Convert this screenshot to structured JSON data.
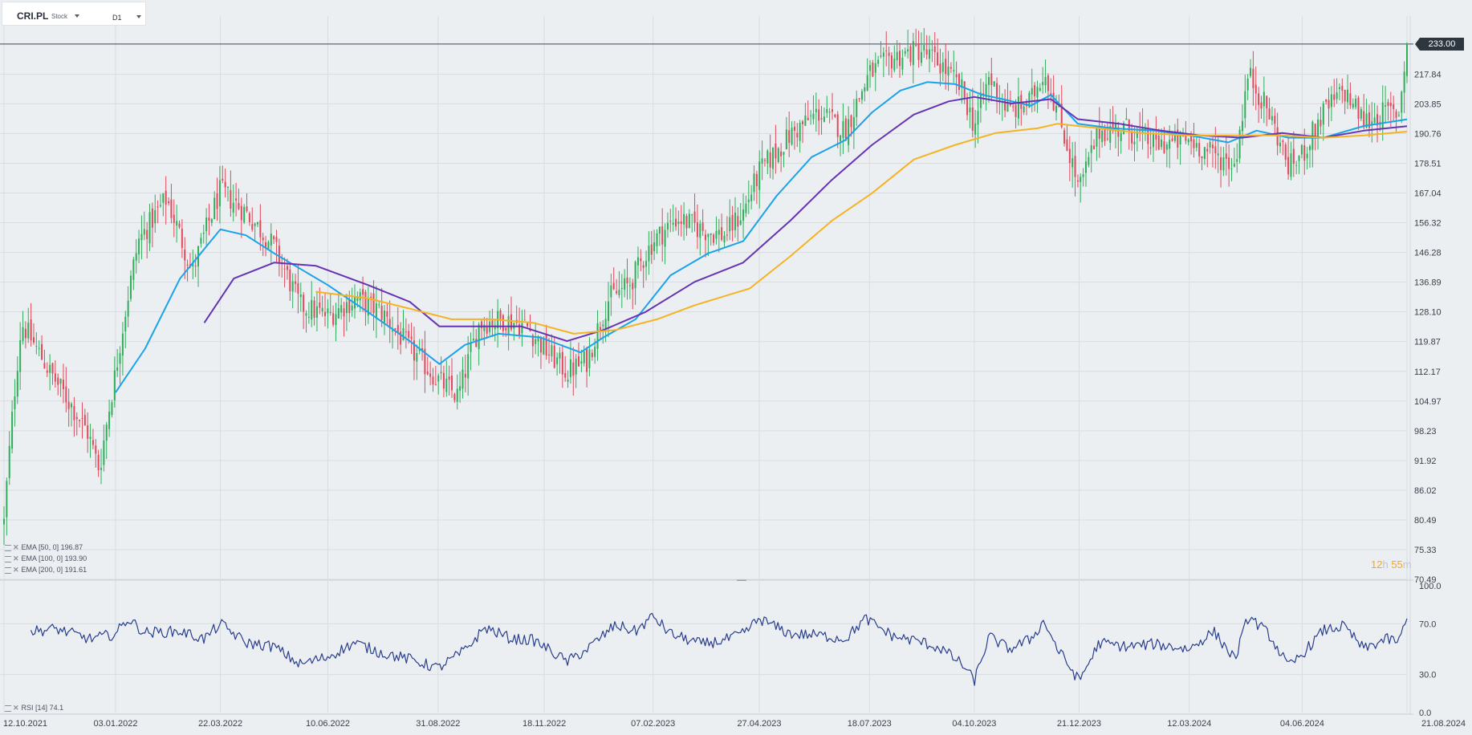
{
  "toolbar": {
    "symbol": "CRI.PL",
    "asset_type": "Stock",
    "timeframe": "D1"
  },
  "current_price": "233.00",
  "countdown": {
    "hours": "12",
    "h_unit": "h",
    "minutes": "55",
    "m_unit": "m"
  },
  "indicators": [
    {
      "label": "EMA  [50,  0]  196.87",
      "color": "#1aa3e8"
    },
    {
      "label": "EMA  [100,  0]  193.90",
      "color": "#6633b3"
    },
    {
      "label": "EMA  [200,  0]  191.61",
      "color": "#f5b324"
    }
  ],
  "rsi_legend": "RSI  [14]  74.1",
  "colors": {
    "up": "#2fae5a",
    "down": "#e0495b",
    "ema50": "#1aa3e8",
    "ema100": "#6633b3",
    "ema200": "#f5b324",
    "rsi": "#283e8c"
  },
  "chart_data": [
    {
      "type": "candlestick",
      "title": "",
      "x_tick_labels": [
        "12.10.2021",
        "03.01.2022",
        "22.03.2022",
        "10.06.2022",
        "31.08.2022",
        "18.11.2022",
        "07.02.2023",
        "27.04.2023",
        "18.07.2023",
        "04.10.2023",
        "21.12.2023",
        "12.03.2024",
        "04.06.2024",
        "21.08.2024"
      ],
      "y_tick_labels": [
        "217.84",
        "203.85",
        "190.76",
        "178.51",
        "167.04",
        "156.32",
        "146.28",
        "136.89",
        "128.10",
        "119.87",
        "112.17",
        "104.97",
        "98.23",
        "91.92",
        "86.02",
        "80.49",
        "75.33",
        "70.49"
      ],
      "y_scale": "log",
      "ylim": [
        70.49,
        248
      ],
      "current_price": 233.0,
      "close_path": [
        [
          "2021-10-12",
          80
        ],
        [
          "2021-10-25",
          125
        ],
        [
          "2021-11-15",
          112
        ],
        [
          "2021-12-13",
          98
        ],
        [
          "2021-12-22",
          90
        ],
        [
          "2022-01-03",
          112
        ],
        [
          "2022-01-20",
          150
        ],
        [
          "2022-02-10",
          165
        ],
        [
          "2022-03-01",
          140
        ],
        [
          "2022-03-22",
          168
        ],
        [
          "2022-04-10",
          160
        ],
        [
          "2022-05-01",
          148
        ],
        [
          "2022-05-20",
          130
        ],
        [
          "2022-06-10",
          127
        ],
        [
          "2022-07-01",
          132
        ],
        [
          "2022-07-20",
          128
        ],
        [
          "2022-08-10",
          118
        ],
        [
          "2022-08-31",
          110
        ],
        [
          "2022-09-15",
          106
        ],
        [
          "2022-10-01",
          125
        ],
        [
          "2022-10-20",
          126
        ],
        [
          "2022-11-05",
          124
        ],
        [
          "2022-11-18",
          118
        ],
        [
          "2022-12-05",
          112
        ],
        [
          "2022-12-20",
          115
        ],
        [
          "2023-01-05",
          132
        ],
        [
          "2023-01-20",
          136
        ],
        [
          "2023-02-07",
          150
        ],
        [
          "2023-02-25",
          158
        ],
        [
          "2023-03-15",
          154
        ],
        [
          "2023-04-01",
          152
        ],
        [
          "2023-04-15",
          160
        ],
        [
          "2023-04-27",
          175
        ],
        [
          "2023-05-20",
          190
        ],
        [
          "2023-06-10",
          200
        ],
        [
          "2023-06-30",
          192
        ],
        [
          "2023-07-18",
          218
        ],
        [
          "2023-08-05",
          226
        ],
        [
          "2023-08-25",
          230
        ],
        [
          "2023-09-10",
          222
        ],
        [
          "2023-09-25",
          210
        ],
        [
          "2023-10-04",
          194
        ],
        [
          "2023-10-15",
          216
        ],
        [
          "2023-10-30",
          200
        ],
        [
          "2023-11-15",
          205
        ],
        [
          "2023-11-25",
          220
        ],
        [
          "2023-12-05",
          200
        ],
        [
          "2023-12-21",
          168
        ],
        [
          "2024-01-05",
          192
        ],
        [
          "2024-01-25",
          193
        ],
        [
          "2024-02-15",
          186
        ],
        [
          "2024-03-12",
          188
        ],
        [
          "2024-03-30",
          182
        ],
        [
          "2024-04-15",
          178
        ],
        [
          "2024-04-25",
          218
        ],
        [
          "2024-05-10",
          200
        ],
        [
          "2024-05-25",
          177
        ],
        [
          "2024-06-04",
          182
        ],
        [
          "2024-06-20",
          200
        ],
        [
          "2024-07-05",
          210
        ],
        [
          "2024-07-20",
          196
        ],
        [
          "2024-08-05",
          200
        ],
        [
          "2024-08-15",
          200
        ],
        [
          "2024-08-21",
          233
        ]
      ],
      "series": [
        {
          "name": "EMA  [50,  0]",
          "last": 196.87,
          "values": [
            [
              "2022-01-03",
              107
            ],
            [
              "2022-01-25",
              118
            ],
            [
              "2022-02-20",
              138
            ],
            [
              "2022-03-22",
              154
            ],
            [
              "2022-04-10",
              152
            ],
            [
              "2022-05-01",
              146
            ],
            [
              "2022-06-10",
              136
            ],
            [
              "2022-07-10",
              128
            ],
            [
              "2022-08-10",
              120
            ],
            [
              "2022-09-01",
              114
            ],
            [
              "2022-09-20",
              119
            ],
            [
              "2022-10-15",
              122
            ],
            [
              "2022-11-15",
              121
            ],
            [
              "2022-12-15",
              117
            ],
            [
              "2023-01-01",
              121
            ],
            [
              "2023-01-25",
              126
            ],
            [
              "2023-02-20",
              139
            ],
            [
              "2023-03-20",
              146
            ],
            [
              "2023-04-15",
              150
            ],
            [
              "2023-05-10",
              166
            ],
            [
              "2023-06-05",
              181
            ],
            [
              "2023-06-30",
              188
            ],
            [
              "2023-07-20",
              200
            ],
            [
              "2023-08-10",
              210
            ],
            [
              "2023-08-30",
              214
            ],
            [
              "2023-09-20",
              213
            ],
            [
              "2023-10-10",
              208
            ],
            [
              "2023-10-25",
              206
            ],
            [
              "2023-11-15",
              203
            ],
            [
              "2023-11-30",
              208
            ],
            [
              "2023-12-20",
              195
            ],
            [
              "2024-01-15",
              193
            ],
            [
              "2024-02-15",
              192
            ],
            [
              "2024-03-12",
              190
            ],
            [
              "2024-04-10",
              187
            ],
            [
              "2024-05-01",
              192
            ],
            [
              "2024-05-25",
              189
            ],
            [
              "2024-06-20",
              189
            ],
            [
              "2024-07-20",
              194
            ],
            [
              "2024-08-21",
              196.87
            ]
          ]
        },
        {
          "name": "EMA  [100,  0]",
          "last": 193.9,
          "values": [
            [
              "2022-03-10",
              125
            ],
            [
              "2022-04-01",
              138
            ],
            [
              "2022-05-01",
              143
            ],
            [
              "2022-06-01",
              142
            ],
            [
              "2022-07-10",
              136
            ],
            [
              "2022-08-10",
              131
            ],
            [
              "2022-09-01",
              124
            ],
            [
              "2022-10-01",
              124
            ],
            [
              "2022-11-01",
              124
            ],
            [
              "2022-12-05",
              120
            ],
            [
              "2023-01-01",
              123
            ],
            [
              "2023-02-01",
              128
            ],
            [
              "2023-03-10",
              137
            ],
            [
              "2023-04-15",
              143
            ],
            [
              "2023-05-20",
              157
            ],
            [
              "2023-06-20",
              172
            ],
            [
              "2023-07-20",
              186
            ],
            [
              "2023-08-20",
              199
            ],
            [
              "2023-09-15",
              205
            ],
            [
              "2023-10-04",
              207
            ],
            [
              "2023-11-01",
              204
            ],
            [
              "2023-11-30",
              206
            ],
            [
              "2023-12-20",
              197
            ],
            [
              "2024-01-20",
              195
            ],
            [
              "2024-02-20",
              192
            ],
            [
              "2024-03-20",
              190
            ],
            [
              "2024-04-20",
              189
            ],
            [
              "2024-05-20",
              191
            ],
            [
              "2024-06-20",
              189
            ],
            [
              "2024-07-20",
              192
            ],
            [
              "2024-08-21",
              193.9
            ]
          ]
        },
        {
          "name": "EMA  [200,  0]",
          "last": 191.61,
          "values": [
            [
              "2022-06-01",
              134
            ],
            [
              "2022-07-10",
              132
            ],
            [
              "2022-08-10",
              129
            ],
            [
              "2022-09-10",
              126
            ],
            [
              "2022-10-10",
              126
            ],
            [
              "2022-11-10",
              125
            ],
            [
              "2022-12-10",
              122
            ],
            [
              "2023-01-10",
              123
            ],
            [
              "2023-02-10",
              126
            ],
            [
              "2023-03-10",
              130
            ],
            [
              "2023-04-20",
              135
            ],
            [
              "2023-05-20",
              145
            ],
            [
              "2023-06-20",
              157
            ],
            [
              "2023-07-20",
              167
            ],
            [
              "2023-08-20",
              180
            ],
            [
              "2023-09-20",
              186
            ],
            [
              "2023-10-20",
              191
            ],
            [
              "2023-11-20",
              193
            ],
            [
              "2023-12-05",
              195
            ],
            [
              "2024-01-05",
              193
            ],
            [
              "2024-02-05",
              191
            ],
            [
              "2024-03-12",
              190
            ],
            [
              "2024-04-20",
              190
            ],
            [
              "2024-05-20",
              190
            ],
            [
              "2024-06-20",
              189
            ],
            [
              "2024-07-20",
              190
            ],
            [
              "2024-08-21",
              191.61
            ]
          ]
        }
      ]
    },
    {
      "type": "line",
      "title": "",
      "ylim": [
        0,
        100
      ],
      "y_tick_labels": [
        "100.0",
        "70.0",
        "30.0",
        "0.0"
      ],
      "series": [
        {
          "name": "RSI  [14]",
          "last": 74.1,
          "values": [
            [
              "2021-11-01",
              64
            ],
            [
              "2021-11-20",
              66
            ],
            [
              "2021-12-15",
              58
            ],
            [
              "2022-01-03",
              62
            ],
            [
              "2022-01-12",
              74
            ],
            [
              "2022-01-25",
              63
            ],
            [
              "2022-02-20",
              64
            ],
            [
              "2022-03-10",
              58
            ],
            [
              "2022-03-22",
              70
            ],
            [
              "2022-04-10",
              55
            ],
            [
              "2022-05-01",
              52
            ],
            [
              "2022-05-20",
              38
            ],
            [
              "2022-06-10",
              44
            ],
            [
              "2022-06-30",
              55
            ],
            [
              "2022-07-20",
              47
            ],
            [
              "2022-08-10",
              42
            ],
            [
              "2022-08-31",
              35
            ],
            [
              "2022-09-20",
              49
            ],
            [
              "2022-10-05",
              67
            ],
            [
              "2022-10-25",
              58
            ],
            [
              "2022-11-10",
              57
            ],
            [
              "2022-11-18",
              52
            ],
            [
              "2022-12-05",
              40
            ],
            [
              "2022-12-20",
              50
            ],
            [
              "2023-01-10",
              69
            ],
            [
              "2023-01-25",
              64
            ],
            [
              "2023-02-07",
              76
            ],
            [
              "2023-02-20",
              62
            ],
            [
              "2023-03-15",
              54
            ],
            [
              "2023-04-01",
              57
            ],
            [
              "2023-04-15",
              62
            ],
            [
              "2023-04-27",
              74
            ],
            [
              "2023-05-20",
              62
            ],
            [
              "2023-06-10",
              61
            ],
            [
              "2023-06-30",
              58
            ],
            [
              "2023-07-15",
              74
            ],
            [
              "2023-08-05",
              60
            ],
            [
              "2023-08-25",
              56
            ],
            [
              "2023-09-10",
              50
            ],
            [
              "2023-09-25",
              38
            ],
            [
              "2023-10-04",
              25
            ],
            [
              "2023-10-15",
              60
            ],
            [
              "2023-10-30",
              50
            ],
            [
              "2023-11-15",
              58
            ],
            [
              "2023-11-25",
              72
            ],
            [
              "2023-12-05",
              50
            ],
            [
              "2023-12-21",
              25
            ],
            [
              "2024-01-05",
              55
            ],
            [
              "2024-01-25",
              52
            ],
            [
              "2024-02-15",
              54
            ],
            [
              "2024-03-12",
              50
            ],
            [
              "2024-03-30",
              64
            ],
            [
              "2024-04-15",
              42
            ],
            [
              "2024-04-25",
              76
            ],
            [
              "2024-05-10",
              62
            ],
            [
              "2024-05-25",
              36
            ],
            [
              "2024-06-04",
              46
            ],
            [
              "2024-06-20",
              65
            ],
            [
              "2024-07-05",
              68
            ],
            [
              "2024-07-20",
              50
            ],
            [
              "2024-08-05",
              58
            ],
            [
              "2024-08-15",
              56
            ],
            [
              "2024-08-21",
              74.1
            ]
          ]
        }
      ]
    }
  ]
}
